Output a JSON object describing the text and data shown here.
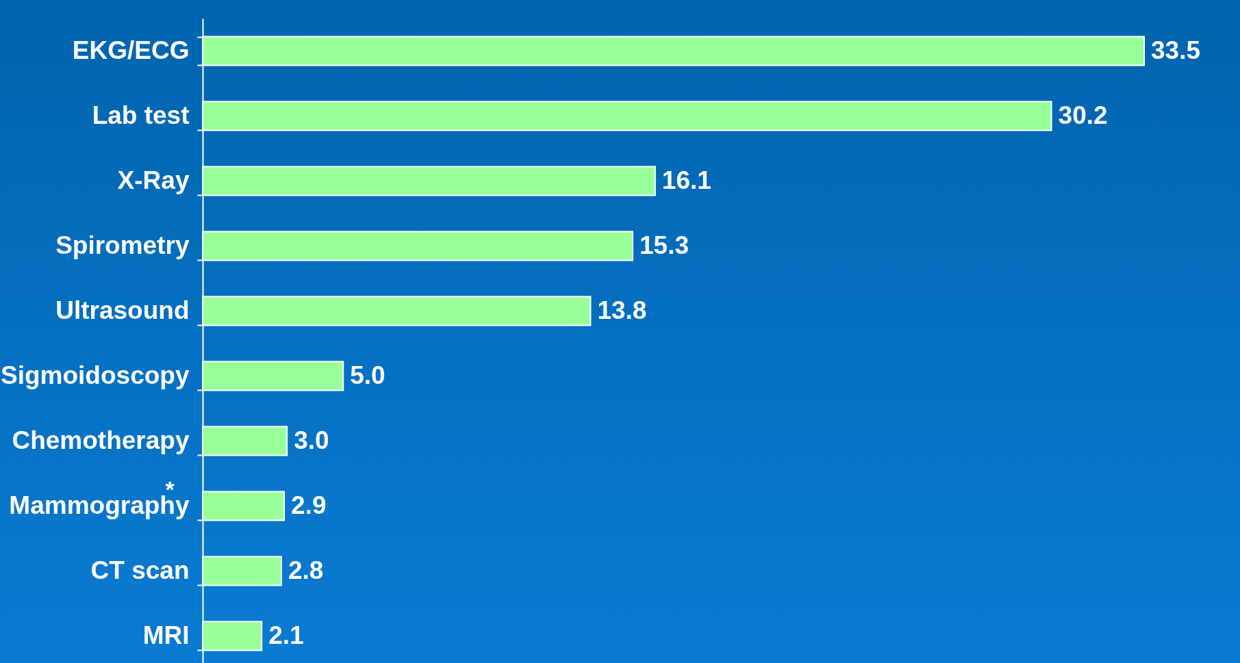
{
  "chart_data": {
    "type": "bar",
    "orientation": "horizontal",
    "categories": [
      "EKG/ECG",
      "Lab test",
      "X-Ray",
      "Spirometry",
      "Ultrasound",
      "Sigmoidoscopy",
      "Chemotherapy",
      "Mammography",
      "CT scan",
      "MRI"
    ],
    "values": [
      33.5,
      30.2,
      16.1,
      15.3,
      13.8,
      5.0,
      3.0,
      2.9,
      2.8,
      2.1
    ],
    "color": "#99ff99",
    "value_labels": [
      "33.5",
      "30.2",
      "16.1",
      "15.3",
      "13.8",
      "5.0",
      "3.0",
      "2.9",
      "2.8",
      "2.1"
    ],
    "annotations": [
      "*"
    ]
  }
}
